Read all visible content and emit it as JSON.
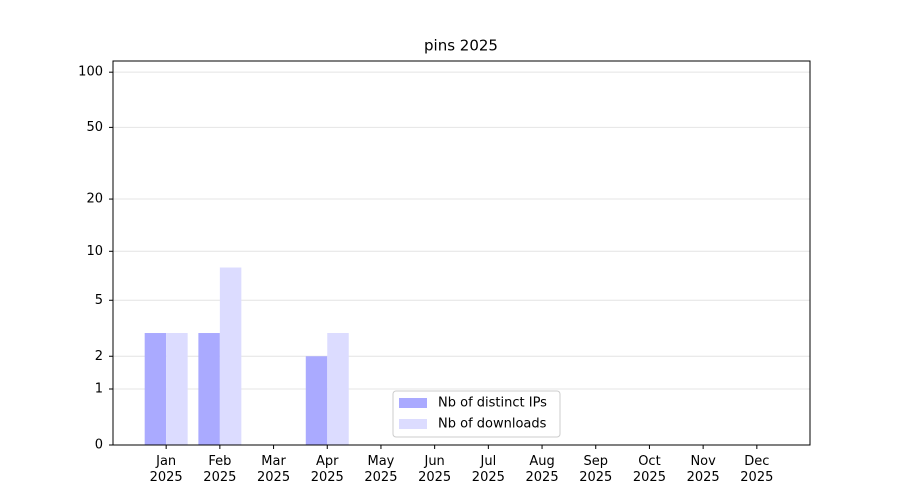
{
  "chart_data": {
    "type": "bar",
    "title": "pins 2025",
    "categories": [
      "Jan\n2025",
      "Feb\n2025",
      "Mar\n2025",
      "Apr\n2025",
      "May\n2025",
      "Jun\n2025",
      "Jul\n2025",
      "Aug\n2025",
      "Sep\n2025",
      "Oct\n2025",
      "Nov\n2025",
      "Dec\n2025"
    ],
    "series": [
      {
        "name": "Nb of distinct IPs",
        "color": "#aaaaff",
        "values": [
          3,
          3,
          0,
          2,
          0,
          0,
          0,
          0,
          0,
          0,
          0,
          0
        ]
      },
      {
        "name": "Nb of downloads",
        "color": "#dcdcff",
        "values": [
          3,
          8,
          0,
          3,
          0,
          0,
          0,
          0,
          0,
          0,
          0,
          0
        ]
      }
    ],
    "yscale": "log1p",
    "ylim": [
      0,
      115
    ],
    "yticks": [
      0,
      1,
      2,
      5,
      10,
      20,
      50,
      100
    ],
    "grid": true,
    "legend": "lower center"
  }
}
